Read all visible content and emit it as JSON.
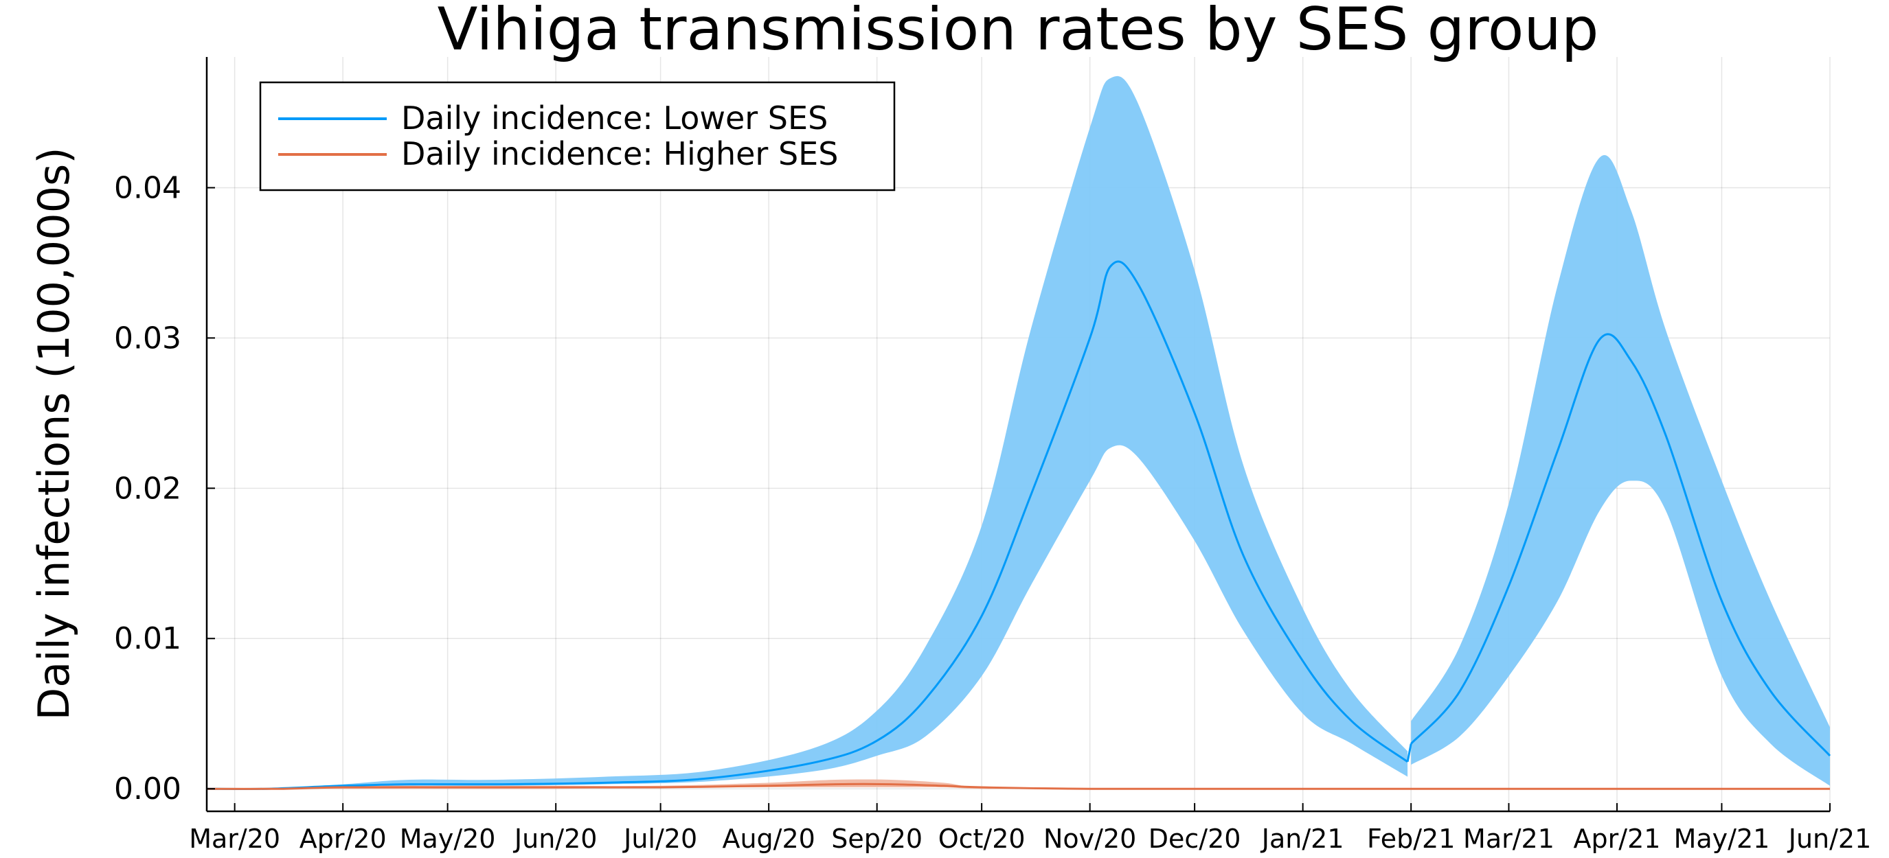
{
  "chart_data": {
    "type": "line",
    "title": "Vihiga transmission rates by SES group",
    "xlabel": "",
    "ylabel": "Daily infections (100,000s)",
    "x_ticks": [
      "Mar/20",
      "Apr/20",
      "May/20",
      "Jun/20",
      "Jul/20",
      "Aug/20",
      "Sep/20",
      "Oct/20",
      "Nov/20",
      "Dec/20",
      "Jan/21",
      "Feb/21",
      "Mar/21",
      "Apr/21",
      "May/21",
      "Jun/21"
    ],
    "y_ticks": [
      "0.00",
      "0.01",
      "0.02",
      "0.03",
      "0.04"
    ],
    "ylim": [
      -0.0015,
      0.0487
    ],
    "grid": true,
    "legend_position": "top-left",
    "series": [
      {
        "name": "Daily incidence: Lower SES",
        "color": "#009af9",
        "band_color": "#81c9f9",
        "x": [
          "2020-02-22",
          "2020-03-10",
          "2020-04-01",
          "2020-04-20",
          "2020-05-15",
          "2020-06-15",
          "2020-07-15",
          "2020-08-15",
          "2020-09-01",
          "2020-09-15",
          "2020-10-01",
          "2020-10-15",
          "2020-11-01",
          "2020-11-07",
          "2020-11-15",
          "2020-12-01",
          "2020-12-15",
          "2021-01-01",
          "2021-01-15",
          "2021-01-31",
          "2021-02-01",
          "2021-02-15",
          "2021-03-01",
          "2021-03-15",
          "2021-03-27",
          "2021-04-05",
          "2021-04-15",
          "2021-05-01",
          "2021-05-15",
          "2021-06-01"
        ],
        "values": [
          0.0,
          0.0,
          0.0002,
          0.0003,
          0.0003,
          0.0004,
          0.0007,
          0.0018,
          0.0032,
          0.006,
          0.0115,
          0.0195,
          0.03,
          0.0348,
          0.0335,
          0.025,
          0.0155,
          0.0085,
          0.0045,
          0.0018,
          0.003,
          0.0065,
          0.0135,
          0.0225,
          0.0299,
          0.0285,
          0.0235,
          0.0125,
          0.0065,
          0.0022
        ],
        "lower": [
          0.0,
          0.0,
          0.0001,
          0.0002,
          0.0002,
          0.0003,
          0.0005,
          0.0012,
          0.0022,
          0.0035,
          0.0075,
          0.0135,
          0.0205,
          0.0227,
          0.022,
          0.0165,
          0.0105,
          0.005,
          0.003,
          0.0008,
          0.0016,
          0.0035,
          0.0075,
          0.0125,
          0.0185,
          0.0205,
          0.0185,
          0.0075,
          0.003,
          0.0002
        ],
        "upper": [
          0.0,
          0.0,
          0.0003,
          0.0006,
          0.0006,
          0.0008,
          0.0012,
          0.0028,
          0.0052,
          0.0095,
          0.0175,
          0.0305,
          0.044,
          0.0473,
          0.0455,
          0.0345,
          0.0215,
          0.012,
          0.0065,
          0.0025,
          0.0045,
          0.0095,
          0.019,
          0.0335,
          0.042,
          0.0385,
          0.0305,
          0.0205,
          0.0125,
          0.0041
        ]
      },
      {
        "name": "Daily incidence: Higher SES",
        "color": "#e26f46",
        "band_color": "#f1b7a2",
        "x": [
          "2020-02-22",
          "2020-03-15",
          "2020-04-01",
          "2020-05-01",
          "2020-06-01",
          "2020-07-01",
          "2020-08-01",
          "2020-08-20",
          "2020-09-05",
          "2020-09-20",
          "2020-10-01",
          "2020-11-01",
          "2021-01-01",
          "2021-03-01",
          "2021-06-01"
        ],
        "values": [
          0.0,
          0.0,
          0.0001,
          0.0001,
          0.0001,
          0.0001,
          0.0002,
          0.0003,
          0.0003,
          0.0002,
          0.0001,
          0.0,
          0.0,
          0.0,
          0.0
        ],
        "lower": [
          0.0,
          0.0,
          0.0,
          0.0,
          0.0,
          0.0001,
          0.0001,
          0.0001,
          0.0001,
          0.0001,
          0.0,
          0.0,
          0.0,
          0.0,
          0.0
        ],
        "upper": [
          0.0,
          0.0,
          0.0002,
          0.0002,
          0.0002,
          0.0002,
          0.0004,
          0.0006,
          0.0006,
          0.0004,
          0.0001,
          0.0,
          0.0,
          0.0,
          0.0
        ]
      }
    ]
  }
}
